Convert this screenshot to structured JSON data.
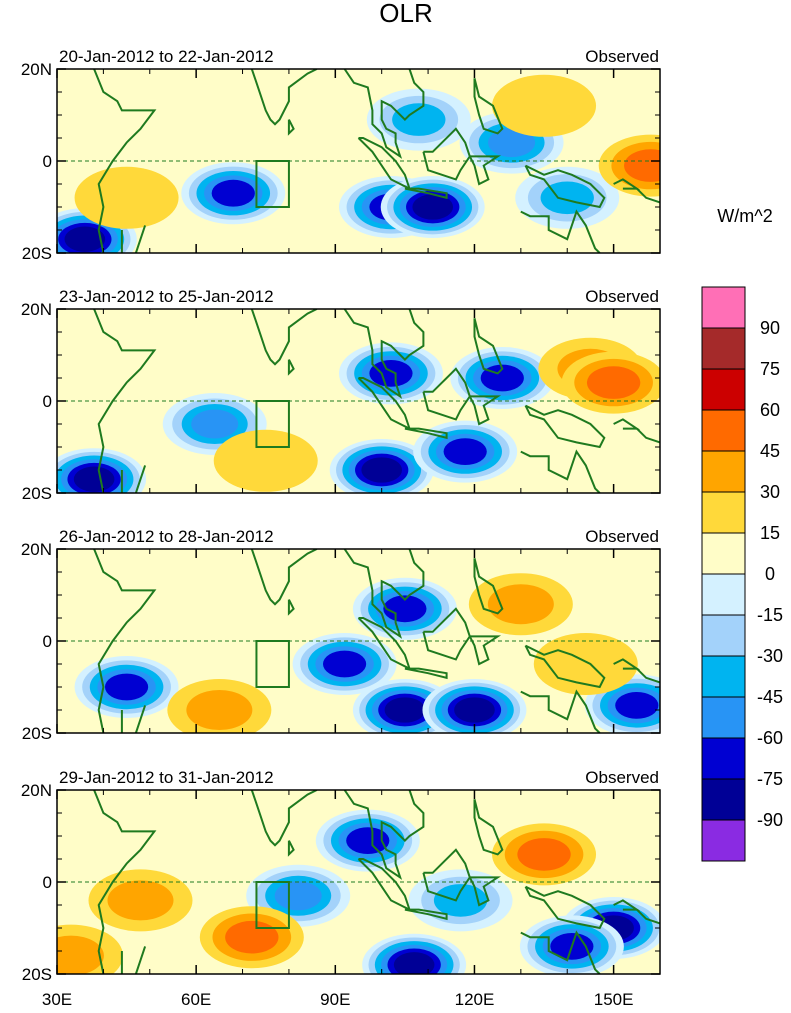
{
  "chart_data": {
    "type": "heatmap",
    "title": "OLR",
    "units": "W/m^2",
    "longitude_range": [
      30,
      160
    ],
    "latitude_range": [
      -20,
      20
    ],
    "x_tick_labels": [
      "30E",
      "60E",
      "90E",
      "120E",
      "150E"
    ],
    "x_tick_values": [
      30,
      60,
      90,
      120,
      150
    ],
    "y_tick_labels": [
      "20N",
      "0",
      "20S"
    ],
    "y_tick_values": [
      20,
      0,
      -20
    ],
    "box_region": {
      "lon": [
        73,
        80
      ],
      "lat": [
        -10,
        0
      ]
    },
    "colorbar": {
      "levels": [
        90,
        75,
        60,
        45,
        30,
        15,
        0,
        -15,
        -30,
        -45,
        -60,
        -75,
        -90
      ],
      "labels": [
        "90",
        "75",
        "60",
        "45",
        "30",
        "15",
        "0",
        "-15",
        "-30",
        "-45",
        "-60",
        "-75",
        "-90"
      ],
      "colors": [
        "#ff6fb6",
        "#a52a2a",
        "#cc0000",
        "#ff6a00",
        "#ffa500",
        "#ffd93a",
        "#fffdc8",
        "#d4f1ff",
        "#a3d2fa",
        "#00b4f0",
        "#2894f5",
        "#0000d2",
        "#000096",
        "#8a2be2"
      ]
    },
    "panels": [
      {
        "period": "20-Jan-2012 to 22-Jan-2012",
        "label": "Observed",
        "anomalies": [
          {
            "lon": 108,
            "lat": 9,
            "value": -45
          },
          {
            "lon": 128,
            "lat": 4,
            "value": -60
          },
          {
            "lon": 68,
            "lat": -7,
            "value": -75
          },
          {
            "lon": 102,
            "lat": -10,
            "value": -75
          },
          {
            "lon": 111,
            "lat": -10,
            "value": -90
          },
          {
            "lon": 36,
            "lat": -17,
            "value": -90
          },
          {
            "lon": 140,
            "lat": -8,
            "value": -45
          },
          {
            "lon": 158,
            "lat": -1,
            "value": 45
          },
          {
            "lon": 135,
            "lat": 12,
            "value": 15
          },
          {
            "lon": 45,
            "lat": -8,
            "value": 15
          }
        ]
      },
      {
        "period": "23-Jan-2012 to 25-Jan-2012",
        "label": "Observed",
        "anomalies": [
          {
            "lon": 102,
            "lat": 6,
            "value": -75
          },
          {
            "lon": 126,
            "lat": 5,
            "value": -75
          },
          {
            "lon": 64,
            "lat": -5,
            "value": -60
          },
          {
            "lon": 100,
            "lat": -15,
            "value": -90
          },
          {
            "lon": 118,
            "lat": -11,
            "value": -75
          },
          {
            "lon": 38,
            "lat": -17,
            "value": -90
          },
          {
            "lon": 145,
            "lat": 7,
            "value": 30
          },
          {
            "lon": 150,
            "lat": 4,
            "value": 45
          },
          {
            "lon": 75,
            "lat": -13,
            "value": 15
          }
        ]
      },
      {
        "period": "26-Jan-2012 to 28-Jan-2012",
        "label": "Observed",
        "anomalies": [
          {
            "lon": 105,
            "lat": 7,
            "value": -75
          },
          {
            "lon": 45,
            "lat": -10,
            "value": -75
          },
          {
            "lon": 92,
            "lat": -5,
            "value": -75
          },
          {
            "lon": 105,
            "lat": -15,
            "value": -90
          },
          {
            "lon": 120,
            "lat": -15,
            "value": -90
          },
          {
            "lon": 155,
            "lat": -14,
            "value": -75
          },
          {
            "lon": 130,
            "lat": 8,
            "value": 30
          },
          {
            "lon": 65,
            "lat": -15,
            "value": 30
          },
          {
            "lon": 144,
            "lat": -5,
            "value": 15
          }
        ]
      },
      {
        "period": "29-Jan-2012 to 31-Jan-2012",
        "label": "Observed",
        "anomalies": [
          {
            "lon": 97,
            "lat": 9,
            "value": -75
          },
          {
            "lon": 82,
            "lat": -3,
            "value": -60
          },
          {
            "lon": 107,
            "lat": -18,
            "value": -90
          },
          {
            "lon": 150,
            "lat": -10,
            "value": -90
          },
          {
            "lon": 141,
            "lat": -14,
            "value": -75
          },
          {
            "lon": 135,
            "lat": 6,
            "value": 45
          },
          {
            "lon": 72,
            "lat": -12,
            "value": 45
          },
          {
            "lon": 33,
            "lat": -16,
            "value": 30
          },
          {
            "lon": 48,
            "lat": -4,
            "value": 30
          },
          {
            "lon": 117,
            "lat": -4,
            "value": -45
          }
        ]
      }
    ]
  }
}
